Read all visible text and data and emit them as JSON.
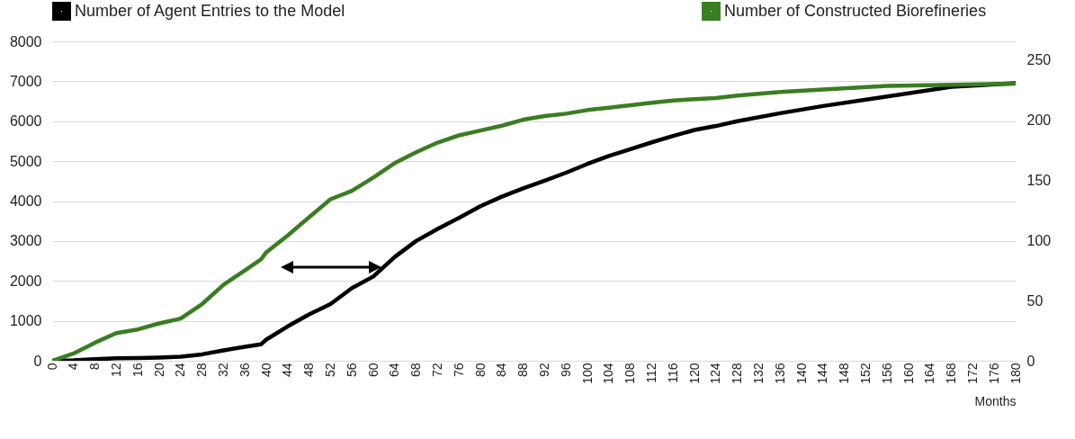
{
  "chart_data": {
    "type": "line",
    "xlabel": "Months",
    "x": [
      0,
      4,
      8,
      12,
      16,
      20,
      24,
      28,
      32,
      36,
      39,
      40,
      44,
      48,
      52,
      56,
      60,
      64,
      68,
      72,
      76,
      80,
      84,
      88,
      92,
      96,
      100,
      104,
      108,
      112,
      116,
      120,
      124,
      128,
      136,
      144,
      156,
      168,
      180
    ],
    "series": [
      {
        "name": "Number of Agent Entries to the Model",
        "color": "#000000",
        "values": [
          0,
          10,
          40,
          60,
          70,
          80,
          100,
          160,
          260,
          350,
          410,
          530,
          860,
          1160,
          1420,
          1820,
          2110,
          2600,
          3000,
          3300,
          3580,
          3870,
          4110,
          4320,
          4510,
          4710,
          4930,
          5130,
          5300,
          5470,
          5630,
          5780,
          5880,
          6000,
          6200,
          6380,
          6620,
          6860,
          6950
        ]
      },
      {
        "name": "Number of Constructed Biorefineries",
        "color": "#3a7d22",
        "axis": "y2",
        "values": [
          0,
          6,
          15,
          23,
          26,
          31,
          35,
          47,
          63,
          75,
          84,
          90,
          104,
          119,
          134,
          141,
          152,
          164,
          173,
          181,
          187,
          191,
          195,
          200,
          203,
          205,
          208,
          210,
          212,
          214,
          216,
          217,
          218,
          220,
          223,
          225,
          228,
          229,
          230
        ]
      }
    ],
    "xlim": [
      0,
      180
    ],
    "xticks": [
      0,
      4,
      8,
      12,
      16,
      20,
      24,
      28,
      32,
      36,
      40,
      44,
      48,
      52,
      56,
      60,
      64,
      68,
      72,
      76,
      80,
      84,
      88,
      92,
      96,
      100,
      104,
      108,
      112,
      116,
      120,
      124,
      128,
      132,
      136,
      140,
      144,
      148,
      152,
      156,
      160,
      164,
      168,
      172,
      176,
      180
    ],
    "ylim": [
      0,
      8000
    ],
    "yticks": [
      0,
      1000,
      2000,
      3000,
      4000,
      5000,
      6000,
      7000,
      8000
    ],
    "y2lim": [
      0,
      265
    ],
    "y2ticks": [
      0,
      50,
      100,
      150,
      200,
      250
    ],
    "grid": "y",
    "legend": "top"
  }
}
